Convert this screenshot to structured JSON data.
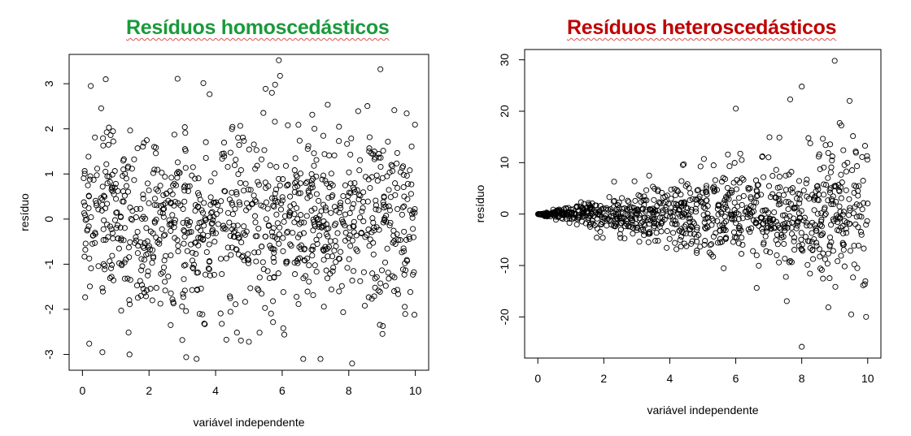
{
  "chart_data": [
    {
      "type": "scatter",
      "title": "Resíduos homoscedásticos",
      "title_color": "#1a9a3c",
      "xlabel": "variável independente",
      "ylabel": "resíduo",
      "xlim": [
        -0.4,
        10.4
      ],
      "ylim": [
        -3.35,
        3.65
      ],
      "xticks": [
        "0",
        "2",
        "4",
        "6",
        "8",
        "10"
      ],
      "yticks": [
        "-3",
        "-2",
        "-1",
        "0",
        "1",
        "2",
        "3"
      ],
      "marker": "open-circle",
      "n_points": 1000,
      "spread": "constant (sd ≈ 1)",
      "notable_points": [
        {
          "x": 0.6,
          "y": -2.95
        },
        {
          "x": 0.7,
          "y": 3.1
        },
        {
          "x": 0.25,
          "y": 2.95
        },
        {
          "x": 5.9,
          "y": 3.52
        },
        {
          "x": 8.95,
          "y": 3.32
        },
        {
          "x": 8.1,
          "y": -3.2
        },
        {
          "x": 3.0,
          "y": -2.68
        },
        {
          "x": 5.0,
          "y": -2.72
        },
        {
          "x": 2.65,
          "y": -2.35
        }
      ]
    },
    {
      "type": "scatter",
      "title": "Resíduos heteroscedásticos",
      "title_color": "#c00000",
      "xlabel": "variável independente",
      "ylabel": "resíduo",
      "xlim": [
        -0.4,
        10.4
      ],
      "ylim": [
        -28,
        32
      ],
      "xticks": [
        "0",
        "2",
        "4",
        "6",
        "8",
        "10"
      ],
      "yticks": [
        "-20",
        "-10",
        "0",
        "10",
        "20",
        "30"
      ],
      "marker": "open-circle",
      "n_points": 1000,
      "spread": "increasing with x (sd ≈ 0.8·x)",
      "notable_points": [
        {
          "x": 9.0,
          "y": 29.8
        },
        {
          "x": 8.0,
          "y": -25.8
        },
        {
          "x": 8.0,
          "y": 24.8
        },
        {
          "x": 6.0,
          "y": 20.5
        },
        {
          "x": 7.65,
          "y": 22.3
        },
        {
          "x": 9.45,
          "y": 22.0
        },
        {
          "x": 9.95,
          "y": -20.0
        },
        {
          "x": 9.5,
          "y": -19.5
        }
      ]
    }
  ]
}
